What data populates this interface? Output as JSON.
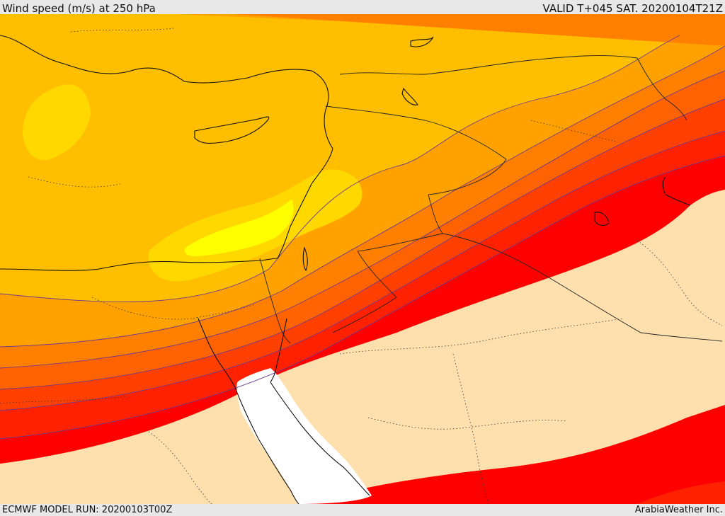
{
  "header": {
    "title": "Wind speed (m/s) at 250 hPa",
    "valid": "VALID T+045 SAT. 20200104T21Z"
  },
  "footer": {
    "model_run": "ECMWF MODEL RUN: 20200103T00Z",
    "credit": "ArabiaWeather Inc."
  },
  "map": {
    "field": "wind-speed",
    "level": "250 hPa",
    "palette": {
      "land": "#fde0ae",
      "sea_unshaded": "#ffffff",
      "yellow": "#ffff00",
      "gold": "#ffd800",
      "amber": "#ffbf00",
      "orange_light": "#ffa200",
      "orange": "#ff8000",
      "orange_dark": "#ff6200",
      "red_orange": "#ff4000",
      "red_light": "#ff2100",
      "red": "#ff0000",
      "contour_line": "#6f3a8a",
      "coast_line": "#111111"
    }
  }
}
